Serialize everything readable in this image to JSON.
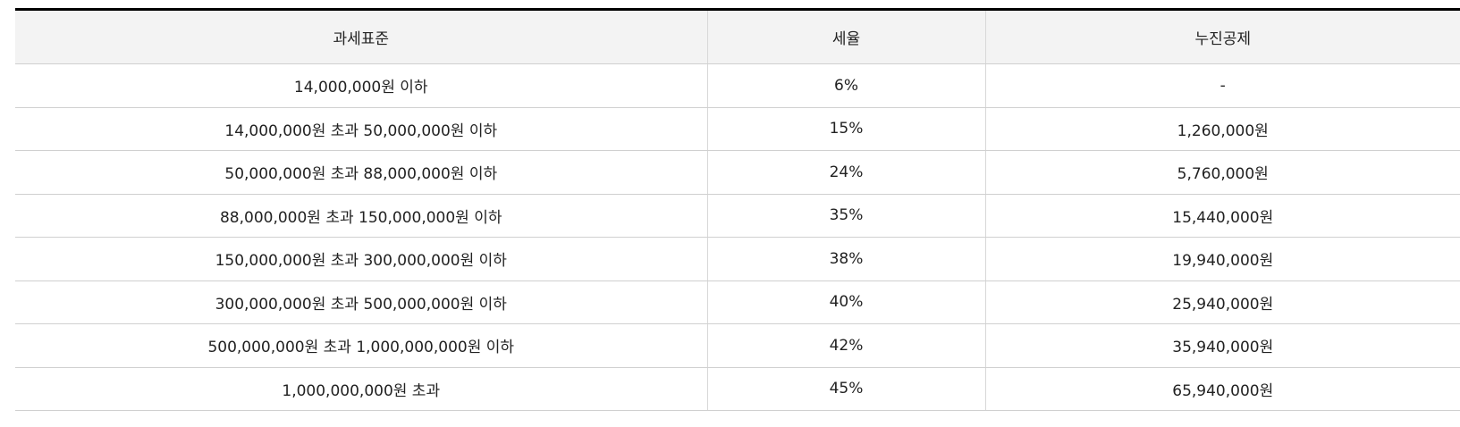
{
  "table": {
    "headers": [
      "과세표준",
      "세율",
      "누진공제"
    ],
    "rows": [
      [
        "14,000,000원 이하",
        "6%",
        "-"
      ],
      [
        "14,000,000원 초과 50,000,000원 이하",
        "15%",
        "1,260,000원"
      ],
      [
        "50,000,000원 초과 88,000,000원 이하",
        "24%",
        "5,760,000원"
      ],
      [
        "88,000,000원 초과 150,000,000원 이하",
        "35%",
        "15,440,000원"
      ],
      [
        "150,000,000원 초과 300,000,000원 이하",
        "38%",
        "19,940,000원"
      ],
      [
        "300,000,000원 초과 500,000,000원 이하",
        "40%",
        "25,940,000원"
      ],
      [
        "500,000,000원 초과 1,000,000,000원 이하",
        "42%",
        "35,940,000원"
      ],
      [
        "1,000,000,000원 초과",
        "45%",
        "65,940,000원"
      ]
    ]
  }
}
